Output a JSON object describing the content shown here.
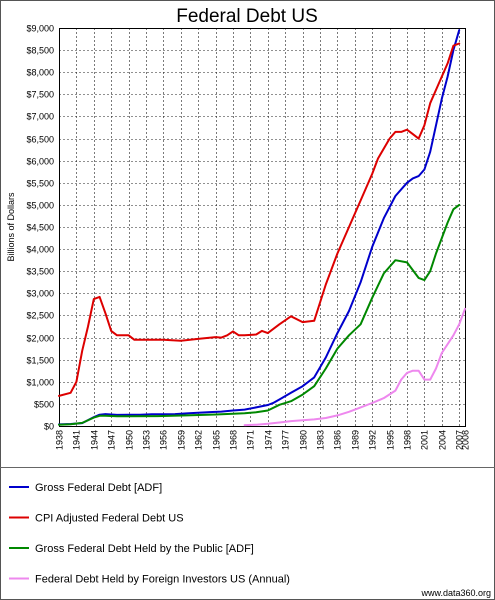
{
  "chart_data": {
    "type": "line",
    "title": "Federal Debt US",
    "ylabel": "Billions of Dollars",
    "xlabel": "",
    "xlim": [
      1938,
      2008
    ],
    "ylim": [
      0,
      9000
    ],
    "grid": true,
    "legend_position": "bottom",
    "x_ticks": [
      "1938",
      "1941",
      "1944",
      "1947",
      "1950",
      "1953",
      "1956",
      "1959",
      "1962",
      "1965",
      "1968",
      "1971",
      "1974",
      "1977",
      "1980",
      "1983",
      "1986",
      "1989",
      "1992",
      "1995",
      "1998",
      "2001",
      "2004",
      "2007",
      "2008"
    ],
    "y_ticks": [
      "$0",
      "$500",
      "$1,000",
      "$1,500",
      "$2,000",
      "$2,500",
      "$3,000",
      "$3,500",
      "$4,000",
      "$4,500",
      "$5,000",
      "$5,500",
      "$6,000",
      "$6,500",
      "$7,000",
      "$7,500",
      "$8,000",
      "$8,500",
      "$9,000"
    ],
    "series": [
      {
        "name": "Gross Federal Debt [ADF]",
        "color": "#0000cc",
        "x": [
          1938,
          1940,
          1942,
          1944,
          1945,
          1946,
          1948,
          1950,
          1952,
          1954,
          1956,
          1958,
          1960,
          1962,
          1964,
          1966,
          1968,
          1970,
          1972,
          1974,
          1975,
          1976,
          1978,
          1980,
          1982,
          1984,
          1986,
          1988,
          1990,
          1992,
          1994,
          1996,
          1998,
          1999,
          2000,
          2001,
          2002,
          2003,
          2004,
          2005,
          2006,
          2007
        ],
        "y": [
          37,
          45,
          65,
          200,
          255,
          270,
          250,
          255,
          255,
          265,
          265,
          270,
          285,
          300,
          315,
          325,
          350,
          370,
          420,
          475,
          525,
          600,
          750,
          900,
          1100,
          1550,
          2100,
          2600,
          3250,
          4050,
          4700,
          5200,
          5500,
          5600,
          5650,
          5800,
          6200,
          6800,
          7400,
          7900,
          8500,
          8950
        ]
      },
      {
        "name": "CPI Adjusted Federal Debt US",
        "color": "#dd0000",
        "x": [
          1938,
          1940,
          1941,
          1942,
          1943,
          1944,
          1945,
          1946,
          1947,
          1948,
          1950,
          1951,
          1953,
          1956,
          1959,
          1962,
          1965,
          1966,
          1967,
          1968,
          1969,
          1970,
          1972,
          1973,
          1974,
          1976,
          1978,
          1980,
          1982,
          1984,
          1986,
          1988,
          1990,
          1992,
          1993,
          1995,
          1996,
          1997,
          1998,
          1999,
          2000,
          2001,
          2002,
          2003,
          2005,
          2006,
          2007
        ],
        "y": [
          680,
          750,
          1000,
          1700,
          2250,
          2870,
          2920,
          2550,
          2150,
          2050,
          2050,
          1950,
          1950,
          1950,
          1930,
          1970,
          2010,
          2000,
          2050,
          2140,
          2050,
          2050,
          2070,
          2150,
          2100,
          2300,
          2480,
          2350,
          2380,
          3200,
          3900,
          4500,
          5100,
          5700,
          6050,
          6500,
          6650,
          6650,
          6700,
          6600,
          6500,
          6800,
          7300,
          7600,
          8200,
          8600,
          8650
        ]
      },
      {
        "name": "Gross Federal Debt Held by the Public [ADF]",
        "color": "#008800",
        "x": [
          1938,
          1940,
          1942,
          1944,
          1945,
          1946,
          1948,
          1950,
          1955,
          1960,
          1965,
          1970,
          1972,
          1974,
          1976,
          1978,
          1980,
          1982,
          1984,
          1986,
          1988,
          1990,
          1992,
          1994,
          1996,
          1998,
          2000,
          2001,
          2002,
          2003,
          2004,
          2005,
          2006,
          2007
        ],
        "y": [
          30,
          40,
          70,
          190,
          230,
          230,
          220,
          220,
          225,
          240,
          260,
          290,
          310,
          350,
          480,
          560,
          710,
          900,
          1300,
          1750,
          2050,
          2300,
          2900,
          3450,
          3750,
          3700,
          3350,
          3300,
          3500,
          3900,
          4250,
          4600,
          4900,
          5000
        ]
      },
      {
        "name": "Federal Debt Held by Foreign Investors US (Annual)",
        "color": "#ee88ee",
        "x": [
          1970,
          1972,
          1974,
          1976,
          1978,
          1980,
          1982,
          1984,
          1986,
          1988,
          1990,
          1992,
          1994,
          1996,
          1997,
          1998,
          1999,
          2000,
          2001,
          2002,
          2003,
          2004,
          2005,
          2006,
          2007,
          2008
        ],
        "y": [
          20,
          30,
          50,
          80,
          110,
          130,
          150,
          180,
          240,
          320,
          420,
          520,
          630,
          800,
          1050,
          1200,
          1250,
          1250,
          1050,
          1050,
          1300,
          1650,
          1850,
          2050,
          2300,
          2650
        ]
      }
    ]
  },
  "credit": "www.data360.org"
}
